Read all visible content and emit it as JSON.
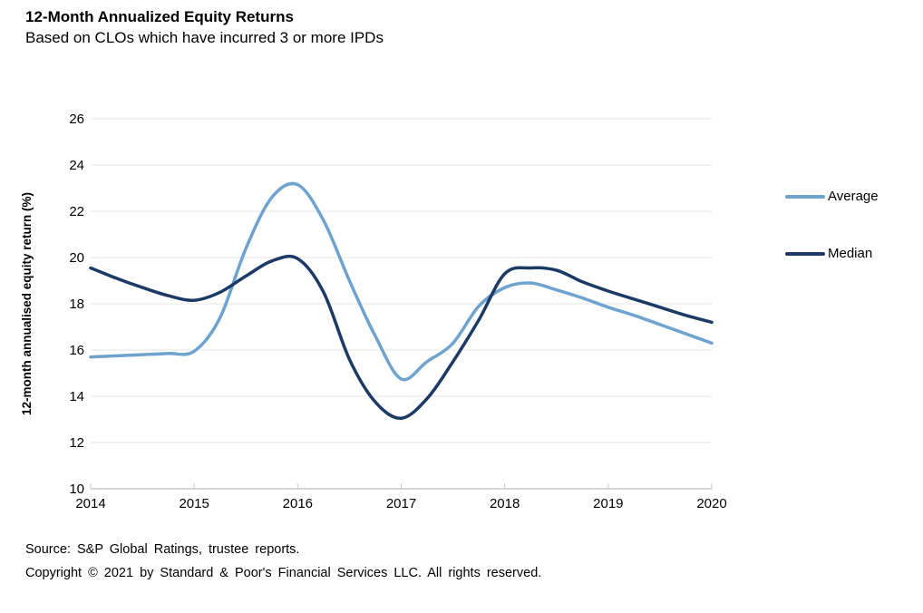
{
  "header": {
    "title": "12-Month Annualized Equity Returns",
    "subtitle": "Based on CLOs which have incurred 3 or more IPDs"
  },
  "chart_data": {
    "type": "line",
    "title": "12-Month Annualized Equity Returns",
    "subtitle": "Based on CLOs which have incurred 3 or more IPDs",
    "ylabel": "12-month annualised equity return (%)",
    "xlabel": "",
    "ylim": [
      10,
      26
    ],
    "xlim": [
      2014,
      2020
    ],
    "yticks": [
      10,
      12,
      14,
      16,
      18,
      20,
      22,
      24,
      26
    ],
    "xticks": [
      2014,
      2015,
      2016,
      2017,
      2018,
      2019,
      2020
    ],
    "grid": "horizontal-only",
    "legend_position": "right-outside",
    "x": [
      2014,
      2014.25,
      2014.5,
      2014.75,
      2015,
      2015.25,
      2015.5,
      2015.75,
      2016,
      2016.25,
      2016.5,
      2016.75,
      2017,
      2017.25,
      2017.5,
      2017.75,
      2018,
      2018.25,
      2018.5,
      2018.75,
      2019,
      2019.25,
      2019.5,
      2019.75,
      2020
    ],
    "series": [
      {
        "name": "Average",
        "color": "#6FA3CF",
        "values": [
          15.7,
          15.75,
          15.8,
          15.85,
          15.95,
          17.4,
          20.4,
          22.6,
          23.15,
          21.6,
          19.0,
          16.6,
          14.75,
          15.5,
          16.3,
          17.9,
          18.7,
          18.9,
          18.6,
          18.25,
          17.85,
          17.5,
          17.1,
          16.7,
          16.3
        ]
      },
      {
        "name": "Median",
        "color": "#1C3A66",
        "values": [
          19.55,
          19.1,
          18.7,
          18.35,
          18.15,
          18.5,
          19.2,
          19.85,
          19.95,
          18.5,
          15.6,
          13.75,
          13.05,
          13.9,
          15.5,
          17.3,
          19.3,
          19.55,
          19.45,
          18.95,
          18.55,
          18.2,
          17.85,
          17.5,
          17.2
        ]
      }
    ]
  },
  "colors": {
    "average_line": "#6FA3CF",
    "median_line": "#1C3A66",
    "gridline": "#E4E4E4",
    "axis_line": "#C9C9C9",
    "text": "#000000",
    "background": "#FFFFFF"
  },
  "footer": {
    "source": "Source: S&P Global Ratings, trustee reports.",
    "copyright": "Copyright © 2021 by Standard & Poor's Financial Services LLC. All rights reserved."
  }
}
